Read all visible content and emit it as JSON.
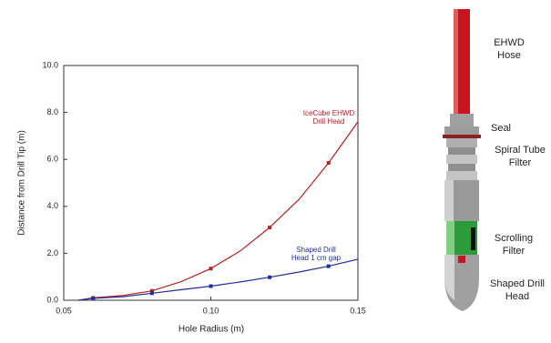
{
  "chart_data": {
    "type": "line",
    "xlabel": "Hole Radius (m)",
    "ylabel": "Distance from Drill Tip (m)",
    "xlim": [
      0.05,
      0.15
    ],
    "xticks": [
      0.05,
      {
        "value": 0.1,
        "label": "0.10"
      },
      0.15
    ],
    "ylim": [
      0,
      10
    ],
    "yticks": [
      {
        "value": 0,
        "label": "0.0"
      },
      {
        "value": 2,
        "label": "2.0"
      },
      {
        "value": 4,
        "label": "4.0"
      },
      {
        "value": 6,
        "label": "6.0"
      },
      {
        "value": 8,
        "label": "8.0"
      },
      {
        "value": 10,
        "label": "10.0"
      }
    ],
    "series": [
      {
        "name": "IceCube EHWD Drill Head",
        "color": "#b22222",
        "x": [
          0.055,
          0.06,
          0.07,
          0.08,
          0.09,
          0.1,
          0.11,
          0.12,
          0.13,
          0.14,
          0.15
        ],
        "values": [
          0,
          0.1,
          0.2,
          0.4,
          0.8,
          1.35,
          2.1,
          3.1,
          4.3,
          5.85,
          7.6
        ],
        "markers": {
          "x": [
            0.06,
            0.08,
            0.1,
            0.12,
            0.14
          ],
          "values": [
            0.1,
            0.4,
            1.35,
            3.1,
            5.85
          ]
        }
      },
      {
        "name": "Shaped Drill Head 1 cm gap",
        "color": "#1f2f9a",
        "x": [
          0.055,
          0.06,
          0.07,
          0.08,
          0.09,
          0.1,
          0.11,
          0.12,
          0.13,
          0.14,
          0.15
        ],
        "values": [
          0,
          0.08,
          0.15,
          0.3,
          0.45,
          0.6,
          0.78,
          0.98,
          1.2,
          1.45,
          1.75
        ],
        "markers": {
          "x": [
            0.06,
            0.08,
            0.1,
            0.12,
            0.14
          ],
          "values": [
            0.08,
            0.3,
            0.6,
            0.98,
            1.45
          ]
        }
      }
    ]
  },
  "diagram": {
    "labels": [
      "EHWD Hose",
      "Seal",
      "Spiral Tube Filter",
      "Scrolling Filter",
      "Shaped Drill Head"
    ]
  }
}
